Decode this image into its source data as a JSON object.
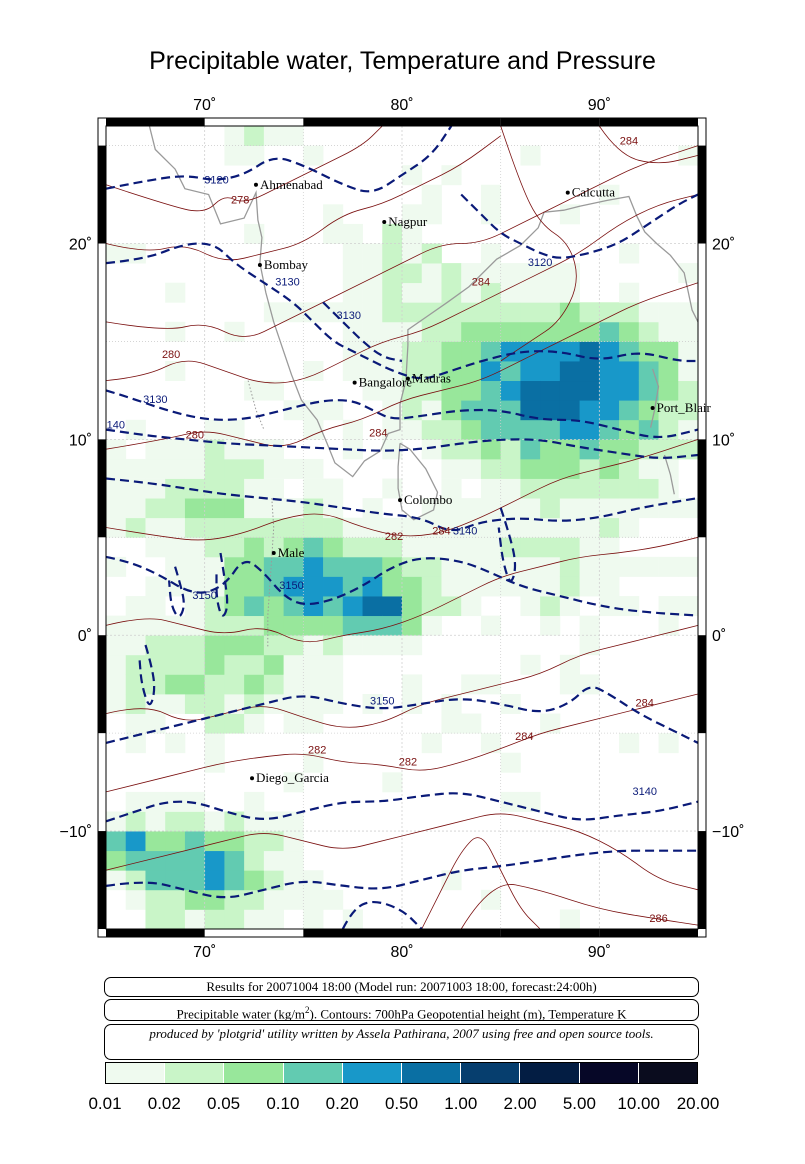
{
  "title": "Precipitable water, Temperature and Pressure",
  "map": {
    "region": {
      "lon_min": 65,
      "lon_max": 95,
      "lat_min": -15,
      "lat_max": 26
    },
    "lon_ticks": [
      {
        "value": 70,
        "label": "70˚"
      },
      {
        "value": 80,
        "label": "80˚"
      },
      {
        "value": 90,
        "label": "90˚"
      }
    ],
    "lat_ticks": [
      {
        "value": 20,
        "label": "20˚"
      },
      {
        "value": 10,
        "label": "10˚"
      },
      {
        "value": 0,
        "label": "0˚"
      },
      {
        "value": -10,
        "label": "−10˚"
      }
    ],
    "cities": [
      {
        "name": "Ahmenabad",
        "lon": 72.6,
        "lat": 23.0
      },
      {
        "name": "Calcutta",
        "lon": 88.4,
        "lat": 22.6
      },
      {
        "name": "Nagpur",
        "lon": 79.1,
        "lat": 21.1
      },
      {
        "name": "Bombay",
        "lon": 72.8,
        "lat": 18.9
      },
      {
        "name": "Bangalore",
        "lon": 77.6,
        "lat": 12.9
      },
      {
        "name": "Madras",
        "lon": 80.3,
        "lat": 13.1
      },
      {
        "name": "Port_Blair",
        "lon": 92.7,
        "lat": 11.6
      },
      {
        "name": "Colombo",
        "lon": 79.9,
        "lat": 6.9
      },
      {
        "name": "Male",
        "lon": 73.5,
        "lat": 4.2
      },
      {
        "name": "Diego_Garcia",
        "lon": 72.4,
        "lat": -7.3
      }
    ],
    "contour_labels": [
      {
        "text": "3120",
        "lon": 70.6,
        "lat": 23.2,
        "kind": "height"
      },
      {
        "text": "278",
        "lon": 71.8,
        "lat": 22.2,
        "kind": "temp"
      },
      {
        "text": "284",
        "lon": 91.5,
        "lat": 25.2,
        "kind": "temp"
      },
      {
        "text": "3120",
        "lon": 87.0,
        "lat": 19.0,
        "kind": "height"
      },
      {
        "text": "284",
        "lon": 84.0,
        "lat": 18.0,
        "kind": "temp"
      },
      {
        "text": "3130",
        "lon": 74.2,
        "lat": 18.0,
        "kind": "height"
      },
      {
        "text": "3130",
        "lon": 77.3,
        "lat": 16.3,
        "kind": "height"
      },
      {
        "text": "280",
        "lon": 68.3,
        "lat": 14.3,
        "kind": "temp"
      },
      {
        "text": "3130",
        "lon": 67.5,
        "lat": 12.0,
        "kind": "height"
      },
      {
        "text": "140",
        "lon": 65.5,
        "lat": 10.7,
        "kind": "height"
      },
      {
        "text": "280",
        "lon": 69.5,
        "lat": 10.2,
        "kind": "temp"
      },
      {
        "text": "284",
        "lon": 78.8,
        "lat": 10.3,
        "kind": "temp"
      },
      {
        "text": "282",
        "lon": 79.6,
        "lat": 5.0,
        "kind": "temp"
      },
      {
        "text": "284",
        "lon": 82.0,
        "lat": 5.3,
        "kind": "temp"
      },
      {
        "text": "3140",
        "lon": 83.2,
        "lat": 5.3,
        "kind": "height"
      },
      {
        "text": "3150",
        "lon": 70.0,
        "lat": 2.0,
        "kind": "height"
      },
      {
        "text": "3150",
        "lon": 74.4,
        "lat": 2.5,
        "kind": "height"
      },
      {
        "text": "3150",
        "lon": 79.0,
        "lat": -3.4,
        "kind": "height"
      },
      {
        "text": "284",
        "lon": 92.3,
        "lat": -3.5,
        "kind": "temp"
      },
      {
        "text": "284",
        "lon": 86.2,
        "lat": -5.2,
        "kind": "temp"
      },
      {
        "text": "282",
        "lon": 75.7,
        "lat": -5.9,
        "kind": "temp"
      },
      {
        "text": "282",
        "lon": 80.3,
        "lat": -6.5,
        "kind": "temp"
      },
      {
        "text": "3140",
        "lon": 92.3,
        "lat": -8.0,
        "kind": "height"
      },
      {
        "text": "286",
        "lon": 93.0,
        "lat": -14.5,
        "kind": "temp"
      }
    ]
  },
  "info": {
    "run_line": "Results for 20071004 18:00 (Model run: 20071003 18:00, forecast:24:00h)",
    "vars_line_prefix": "Precipitable water (kg/m",
    "vars_line_sup": "2",
    "vars_line_suffix": ").  Contours: 700hPa Geopotential height (m), Temperature K",
    "credit_line": "produced by 'plotgrid' utility written by Assela Pathirana, 2007 using free and open source tools."
  },
  "legend": {
    "labels": [
      "0.01",
      "0.02",
      "0.05",
      "0.10",
      "0.20",
      "0.50",
      "1.00",
      "2.00",
      "5.00",
      "10.00",
      "20.00"
    ],
    "colors": [
      "#effaef",
      "#c9f5c8",
      "#98e79b",
      "#62cbb1",
      "#1898c9",
      "#0a6fa3",
      "#063e6e",
      "#031d43",
      "#060727",
      "#0a0c1e"
    ]
  },
  "colors": {
    "height_contour": "#0a1a78",
    "temp_contour": "#7a1010",
    "coastline": "#9a9a9a",
    "grid": "#cfcfcf"
  }
}
